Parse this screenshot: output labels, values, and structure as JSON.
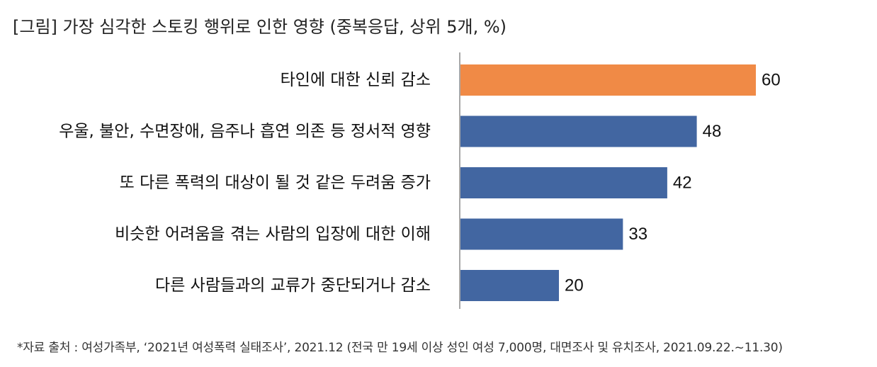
{
  "chart_data": {
    "type": "bar",
    "orientation": "horizontal",
    "title": "[그림] 가장 심각한 스토킹 행위로 인한 영향  (중복응답, 상위 5개, %)",
    "categories": [
      "타인에 대한 신뢰 감소",
      "우울, 불안, 수면장애, 음주나 흡연 의존 등 정서적 영향",
      "또 다른 폭력의 대상이 될 것 같은 두려움 증가",
      "비슷한 어려움을 겪는 사람의 입장에 대한 이해",
      "다른 사람들과의 교류가 중단되거나 감소"
    ],
    "values": [
      60,
      48,
      42,
      33,
      20
    ],
    "colors": [
      "#F08A46",
      "#4266A1",
      "#4266A1",
      "#4266A1",
      "#4266A1"
    ],
    "xlim": [
      0,
      70
    ],
    "grid": false,
    "legend": "none",
    "footnote": "*자료 출처 : 여성가족부, ‘2021년 여성폭력 실태조사’, 2021.12 (전국 만 19세 이상 성인 여성 7,000명, 대면조사 및 유치조사, 2021.09.22.~11.30)"
  }
}
